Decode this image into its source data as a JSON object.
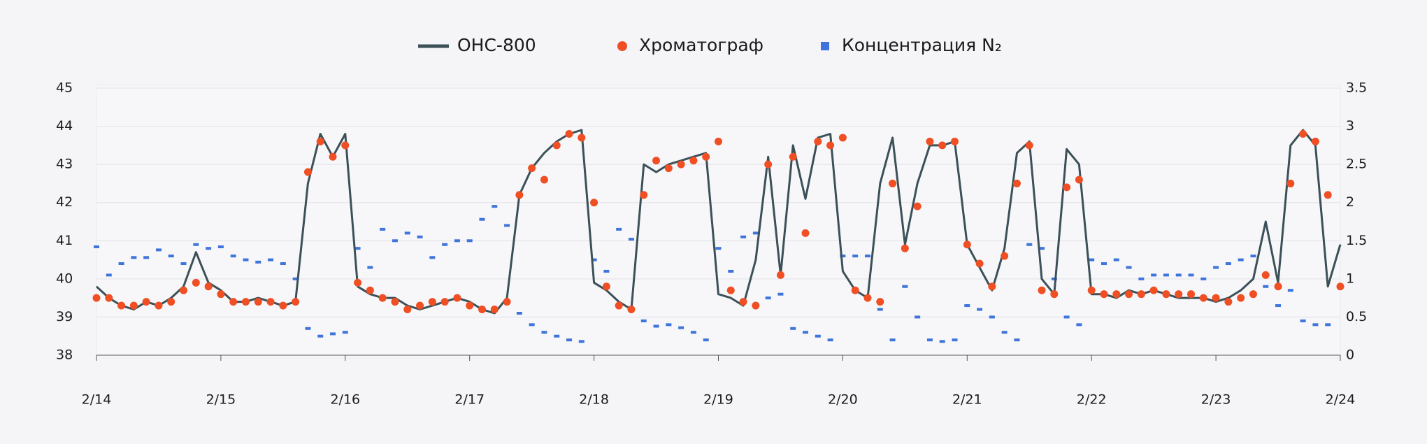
{
  "chart_data": {
    "type": "line",
    "x": [
      14.0,
      14.1,
      14.2,
      14.3,
      14.4,
      14.5,
      14.6,
      14.7,
      14.8,
      14.9,
      15.0,
      15.1,
      15.2,
      15.3,
      15.4,
      15.5,
      15.6,
      15.7,
      15.8,
      15.9,
      16.0,
      16.1,
      16.2,
      16.3,
      16.4,
      16.5,
      16.6,
      16.7,
      16.8,
      16.9,
      17.0,
      17.1,
      17.2,
      17.3,
      17.4,
      17.5,
      17.6,
      17.7,
      17.8,
      17.9,
      18.0,
      18.1,
      18.2,
      18.3,
      18.4,
      18.5,
      18.6,
      18.7,
      18.8,
      18.9,
      19.0,
      19.1,
      19.2,
      19.3,
      19.4,
      19.5,
      19.6,
      19.7,
      19.8,
      19.9,
      20.0,
      20.1,
      20.2,
      20.3,
      20.4,
      20.5,
      20.6,
      20.7,
      20.8,
      20.9,
      21.0,
      21.1,
      21.2,
      21.3,
      21.4,
      21.5,
      21.6,
      21.7,
      21.8,
      21.9,
      22.0,
      22.1,
      22.2,
      22.3,
      22.4,
      22.5,
      22.6,
      22.7,
      22.8,
      22.9,
      23.0,
      23.1,
      23.2,
      23.3,
      23.4,
      23.5,
      23.6,
      23.7,
      23.8,
      23.9,
      24.0
    ],
    "xlim": [
      14,
      24
    ],
    "xticks": [
      {
        "value": 14,
        "label": "2/14"
      },
      {
        "value": 15,
        "label": "2/15"
      },
      {
        "value": 16,
        "label": "2/16"
      },
      {
        "value": 17,
        "label": "2/17"
      },
      {
        "value": 18,
        "label": "2/18"
      },
      {
        "value": 19,
        "label": "2/19"
      },
      {
        "value": 20,
        "label": "2/20"
      },
      {
        "value": 21,
        "label": "2/21"
      },
      {
        "value": 22,
        "label": "2/22"
      },
      {
        "value": 23,
        "label": "2/23"
      },
      {
        "value": 24,
        "label": "2/24"
      }
    ],
    "ylim": [
      38,
      45
    ],
    "yticks": [
      38,
      39,
      40,
      41,
      42,
      43,
      44,
      45
    ],
    "y2lim": [
      0,
      3.5
    ],
    "y2ticks": [
      0,
      0.5,
      1,
      1.5,
      2,
      2.5,
      3,
      3.5
    ],
    "grid": true,
    "legend": "top",
    "series": [
      {
        "name": "ОНС-800",
        "color": "#3b5157",
        "mark": "line",
        "values": [
          39.8,
          39.5,
          39.3,
          39.2,
          39.4,
          39.3,
          39.5,
          39.8,
          40.7,
          39.9,
          39.7,
          39.4,
          39.4,
          39.5,
          39.4,
          39.3,
          39.4,
          42.5,
          43.8,
          43.2,
          43.8,
          39.8,
          39.6,
          39.5,
          39.5,
          39.3,
          39.2,
          39.3,
          39.4,
          39.5,
          39.4,
          39.2,
          39.1,
          39.5,
          42.2,
          42.9,
          43.3,
          43.6,
          43.8,
          43.9,
          39.9,
          39.7,
          39.4,
          39.2,
          43.0,
          42.8,
          43.0,
          43.1,
          43.2,
          43.3,
          39.6,
          39.5,
          39.3,
          40.5,
          43.2,
          40.1,
          43.5,
          42.1,
          43.7,
          43.8,
          40.2,
          39.7,
          39.5,
          42.5,
          43.7,
          40.9,
          42.5,
          43.5,
          43.5,
          43.6,
          40.9,
          40.3,
          39.7,
          40.8,
          43.3,
          43.6,
          40.0,
          39.6,
          43.4,
          43.0,
          39.6,
          39.6,
          39.5,
          39.7,
          39.6,
          39.7,
          39.6,
          39.5,
          39.5,
          39.5,
          39.4,
          39.5,
          39.7,
          40.0,
          41.5,
          39.9,
          43.5,
          43.9,
          43.5,
          39.8,
          40.9
        ]
      },
      {
        "name": "Хроматограф",
        "color": "#f04e23",
        "mark": "circle",
        "values": [
          39.5,
          39.5,
          39.3,
          39.3,
          39.4,
          39.3,
          39.4,
          39.7,
          39.9,
          39.8,
          39.6,
          39.4,
          39.4,
          39.4,
          39.4,
          39.3,
          39.4,
          42.8,
          43.6,
          43.2,
          43.5,
          39.9,
          39.7,
          39.5,
          39.4,
          39.2,
          39.3,
          39.4,
          39.4,
          39.5,
          39.3,
          39.2,
          39.2,
          39.4,
          42.2,
          42.9,
          42.6,
          43.5,
          43.8,
          43.7,
          42.0,
          39.8,
          39.3,
          39.2,
          42.2,
          43.1,
          42.9,
          43.0,
          43.1,
          43.2,
          43.6,
          39.7,
          39.4,
          39.3,
          43.0,
          40.1,
          43.2,
          41.2,
          43.6,
          43.5,
          43.7,
          39.7,
          39.5,
          39.4,
          42.5,
          40.8,
          41.9,
          43.6,
          43.5,
          43.6,
          40.9,
          40.4,
          39.8,
          40.6,
          42.5,
          43.5,
          39.7,
          39.6,
          42.4,
          42.6,
          39.7,
          39.6,
          39.6,
          39.6,
          39.6,
          39.7,
          39.6,
          39.6,
          39.6,
          39.5,
          39.5,
          39.4,
          39.5,
          39.6,
          40.1,
          39.8,
          42.5,
          43.8,
          43.6,
          42.2,
          39.8
        ],
        "value_labels": null
      },
      {
        "name": "Концентрация N₂",
        "color": "#3e74db",
        "mark": "dash",
        "axis": "y2",
        "values": [
          1.42,
          1.05,
          1.2,
          1.28,
          1.28,
          1.38,
          1.3,
          1.2,
          1.45,
          1.4,
          1.42,
          1.3,
          1.25,
          1.22,
          1.25,
          1.2,
          1.0,
          0.35,
          0.25,
          0.28,
          0.3,
          1.4,
          1.15,
          1.65,
          1.5,
          1.6,
          1.55,
          1.28,
          1.45,
          1.5,
          1.5,
          1.78,
          1.95,
          1.7,
          0.55,
          0.4,
          0.3,
          0.25,
          0.2,
          0.18,
          1.25,
          1.1,
          1.65,
          1.52,
          0.45,
          0.38,
          0.4,
          0.36,
          0.3,
          0.2,
          1.4,
          1.1,
          1.55,
          1.6,
          0.75,
          0.8,
          0.35,
          0.3,
          0.25,
          0.2,
          1.3,
          1.3,
          1.3,
          0.6,
          0.2,
          0.9,
          0.5,
          0.2,
          0.18,
          0.2,
          0.65,
          0.6,
          0.5,
          0.3,
          0.2,
          1.45,
          1.4,
          1.0,
          0.5,
          0.4,
          1.25,
          1.2,
          1.25,
          1.15,
          1.0,
          1.05,
          1.05,
          1.05,
          1.05,
          1.0,
          1.15,
          1.2,
          1.25,
          1.3,
          0.9,
          0.65,
          0.85,
          0.45,
          0.4,
          0.4,
          null
        ]
      }
    ]
  }
}
